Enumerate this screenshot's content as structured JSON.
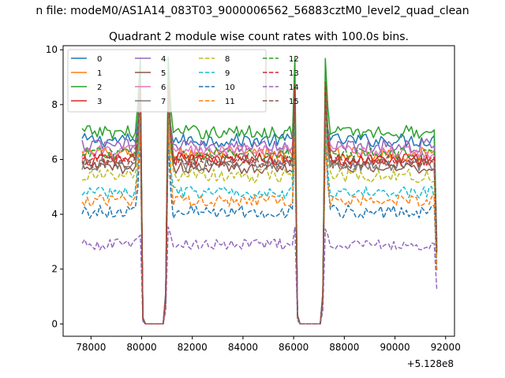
{
  "figure": {
    "suptitle": "n file: modeM0/AS1A14_083T03_9000006562_56883cztM0_level2_quad_clean",
    "title": "Quadrant 2 module wise count rates with 100.0s bins.",
    "offset_label": "+5.128e8"
  },
  "chart_data": {
    "type": "line",
    "title": "Quadrant 2 module wise count rates with 100.0s bins.",
    "xlabel": "",
    "ylabel": "",
    "x_offset": 512800000,
    "xlim": [
      76900,
      92350
    ],
    "ylim": [
      -0.45,
      10.15
    ],
    "xticks": [
      78000,
      80000,
      82000,
      84000,
      86000,
      88000,
      90000,
      92000
    ],
    "xtick_labels": [
      "78000",
      "80000",
      "82000",
      "84000",
      "86000",
      "88000",
      "90000",
      "92000"
    ],
    "yticks": [
      0,
      2,
      4,
      6,
      8,
      10
    ],
    "ytick_labels": [
      "0",
      "2",
      "4",
      "6",
      "8",
      "10"
    ],
    "grid": false,
    "legend_position": "top-left",
    "legend_columns": 4,
    "x_start": 77650,
    "x_end": 91650,
    "bin_width": 100,
    "gaps": [
      {
        "start": 80050,
        "end": 80050,
        "value": 0.2,
        "note": "falling edge"
      },
      {
        "start": 80150,
        "end": 80850,
        "value": 0
      },
      {
        "start": 80950,
        "end": 80950,
        "value": 1.0,
        "note": "rising edge"
      },
      {
        "start": 86150,
        "end": 86150,
        "value": 0.3,
        "note": "falling edge"
      },
      {
        "start": 86250,
        "end": 87050,
        "value": 0
      },
      {
        "start": 87150,
        "end": 87150,
        "value": 1.0,
        "note": "rising edge"
      }
    ],
    "series": [
      {
        "name": "0",
        "color": "#1f77b4",
        "dash": "solid",
        "level": 6.7,
        "peak": 8.6,
        "noise": 0.25
      },
      {
        "name": "1",
        "color": "#ff7f0e",
        "dash": "solid",
        "level": 6.2,
        "peak": 8.4,
        "noise": 0.25
      },
      {
        "name": "2",
        "color": "#2ca02c",
        "dash": "solid",
        "level": 7.0,
        "peak": 9.6,
        "noise": 0.25
      },
      {
        "name": "3",
        "color": "#d62728",
        "dash": "solid",
        "level": 6.0,
        "peak": 8.8,
        "noise": 0.25
      },
      {
        "name": "4",
        "color": "#9467bd",
        "dash": "solid",
        "level": 6.5,
        "peak": 8.0,
        "noise": 0.25
      },
      {
        "name": "5",
        "color": "#8c564b",
        "dash": "solid",
        "level": 5.7,
        "peak": 7.8,
        "noise": 0.22
      },
      {
        "name": "6",
        "color": "#e377c2",
        "dash": "solid",
        "level": 6.3,
        "peak": 8.2,
        "noise": 0.25
      },
      {
        "name": "7",
        "color": "#7f7f7f",
        "dash": "solid",
        "level": 5.8,
        "peak": 7.9,
        "noise": 0.22
      },
      {
        "name": "8",
        "color": "#bcbd22",
        "dash": "dashed",
        "level": 5.4,
        "peak": 7.5,
        "noise": 0.25
      },
      {
        "name": "9",
        "color": "#17becf",
        "dash": "dashed",
        "level": 4.8,
        "peak": 7.2,
        "noise": 0.22
      },
      {
        "name": "10",
        "color": "#1f77b4",
        "dash": "dashed",
        "level": 4.1,
        "peak": 6.8,
        "noise": 0.25
      },
      {
        "name": "11",
        "color": "#ff7f0e",
        "dash": "dashed",
        "level": 4.5,
        "peak": 7.0,
        "noise": 0.22
      },
      {
        "name": "12",
        "color": "#2ca02c",
        "dash": "dashed",
        "level": 6.2,
        "peak": 9.0,
        "noise": 0.22
      },
      {
        "name": "13",
        "color": "#d62728",
        "dash": "dashed",
        "level": 6.0,
        "peak": 8.7,
        "noise": 0.22
      },
      {
        "name": "14",
        "color": "#9467bd",
        "dash": "dashed",
        "level": 2.9,
        "peak": 3.4,
        "noise": 0.2
      },
      {
        "name": "15",
        "color": "#8c564b",
        "dash": "dashed",
        "level": 5.9,
        "peak": 8.3,
        "noise": 0.22
      }
    ]
  }
}
